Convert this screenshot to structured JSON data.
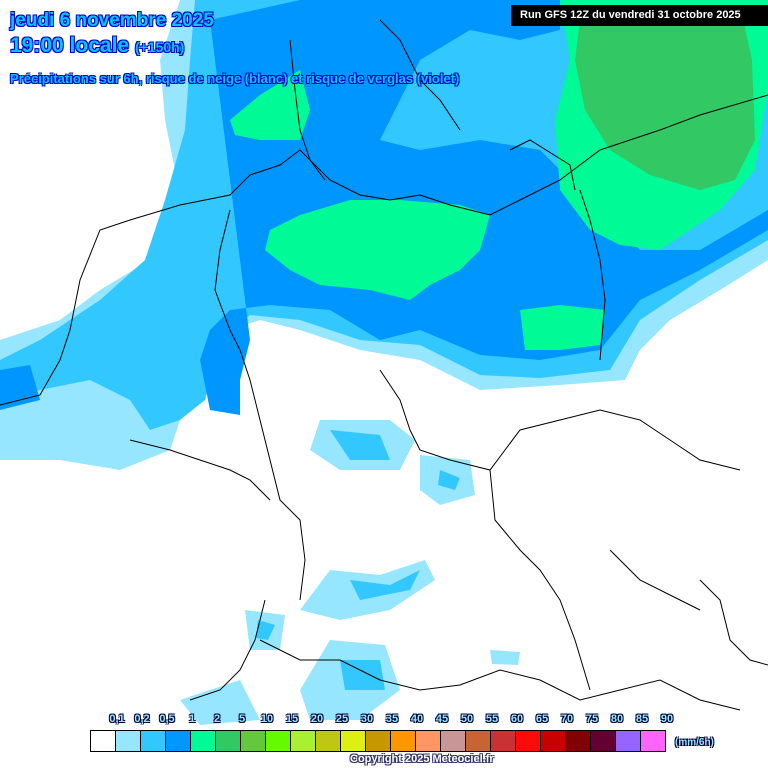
{
  "header": {
    "date": "jeudi 6 novembre 2025",
    "time": "19:00 locale",
    "lead_time": "(+150h)",
    "description": "Précipitations sur 6h, risque de neige (blanc) et risque de verglas (violet)"
  },
  "run_banner": "Run GFS 12Z du vendredi 31 octobre 2025",
  "legend": {
    "unit": "(mm/6h)",
    "ticks": [
      "0,1",
      "0,2",
      "0,5",
      "1",
      "2",
      "5",
      "10",
      "15",
      "20",
      "25",
      "30",
      "35",
      "40",
      "45",
      "50",
      "55",
      "60",
      "65",
      "70",
      "75",
      "80",
      "85",
      "90"
    ],
    "colors": [
      "#ffffff",
      "#96e6ff",
      "#32c8ff",
      "#0096ff",
      "#00fa96",
      "#32c864",
      "#64c83c",
      "#64fa00",
      "#aaf032",
      "#bec814",
      "#dcf014",
      "#c89600",
      "#ff9600",
      "#ff9664",
      "#c89696",
      "#c86432",
      "#c83232",
      "#ff0a0a",
      "#c80000",
      "#820000",
      "#640032",
      "#9664ff",
      "#ff64ff"
    ]
  },
  "copyright": "Copyright 2025 Meteociel.fr",
  "map": {
    "region": "Germany and surroundings",
    "precip_colors": {
      "trace": "#96e6ff",
      "light": "#32c8ff",
      "moderate": "#0096ff",
      "heavier": "#00fa96",
      "heavy": "#32c864"
    }
  }
}
